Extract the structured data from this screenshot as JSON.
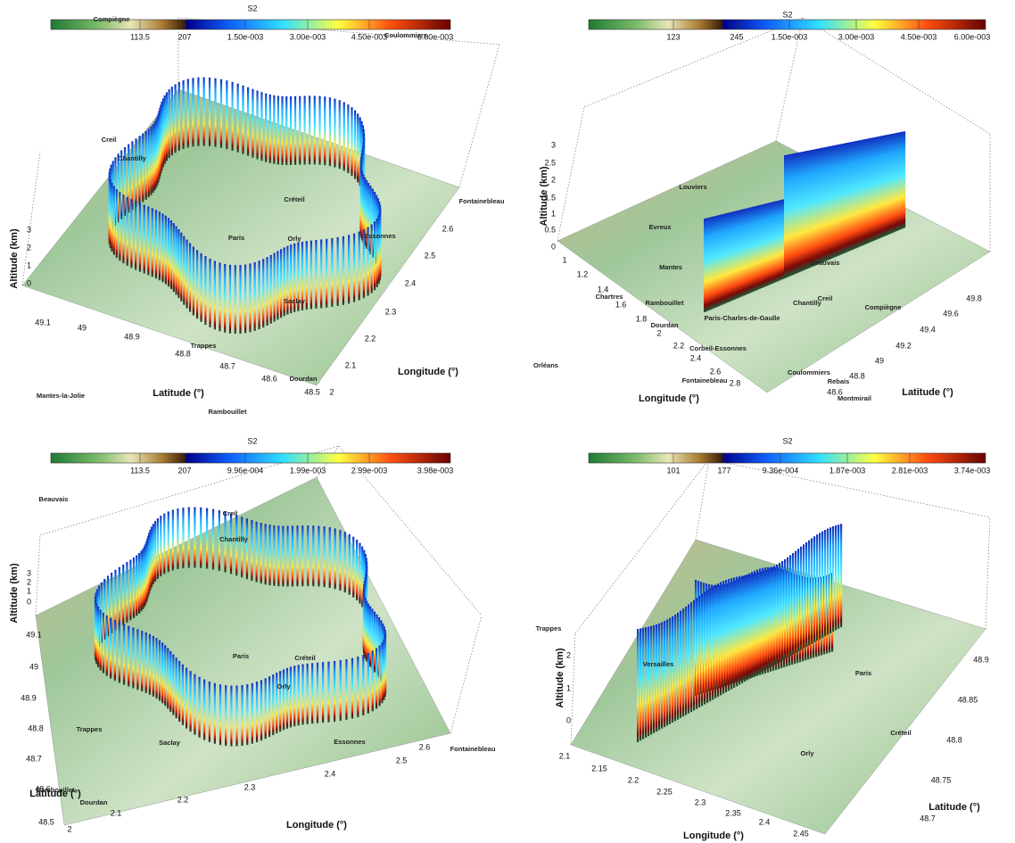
{
  "panels": [
    {
      "colorbar": {
        "title": "S2",
        "ticks": [
          "113.5",
          "207",
          "1.50e-003",
          "3.00e-003",
          "4.50e-003",
          "6.00e-003"
        ]
      },
      "axes": {
        "z_label": "Altitude (km)",
        "z_ticks": [
          0,
          1,
          2,
          3
        ],
        "lat_label": "Latitude (°)",
        "lat_ticks": [
          49.1,
          49,
          48.9,
          48.8,
          48.7,
          48.6,
          48.5
        ],
        "lon_label": "Longitude (°)",
        "lon_ticks": [
          2.6,
          2.5,
          2.4,
          2.3,
          2.2,
          2.1,
          2
        ]
      },
      "places": [
        "Compiègne",
        "Coulommiers",
        "Creil",
        "Chantilly",
        "Fontainebleau",
        "Créteil",
        "Paris",
        "Orly",
        "Essonnes",
        "Saclay",
        "Trappes",
        "Dourdan",
        "Mantes-la-Jolie",
        "Rambouillet"
      ]
    },
    {
      "colorbar": {
        "title": "S2",
        "ticks": [
          "123",
          "245",
          "1.50e-003",
          "3.00e-003",
          "4.50e-003",
          "6.00e-003"
        ]
      },
      "axes": {
        "z_label": "Altitude (km)",
        "z_ticks": [
          3,
          2.5,
          2,
          1.5,
          1,
          0.5,
          0
        ],
        "lat_label": "Latitude (°)",
        "lat_ticks": [
          49.8,
          49.6,
          49.4,
          49.2,
          49,
          48.8,
          48.6
        ],
        "lon_label": "Longitude (°)",
        "lon_ticks": [
          1,
          1.2,
          1.4,
          1.6,
          1.8,
          2,
          2.2,
          2.4,
          2.6,
          2.8
        ]
      },
      "places": [
        "Louviers",
        "Evreux",
        "Mantes",
        "Beauvais",
        "Chartres",
        "Rambouillet",
        "Dourdan",
        "Paris-Charles-de-Gaulle",
        "Creil",
        "Chantilly",
        "Compiègne",
        "Corbeil-Essonnes",
        "Orléans",
        "Fontainebleau",
        "Coulommiers",
        "Rebais",
        "Montmirail"
      ]
    },
    {
      "colorbar": {
        "title": "S2",
        "ticks": [
          "113.5",
          "207",
          "9.96e-004",
          "1.99e-003",
          "2.99e-003",
          "3.98e-003"
        ]
      },
      "axes": {
        "z_label": "Altitude (km)",
        "z_ticks": [
          3,
          2,
          1,
          0
        ],
        "lat_label": "Latitude (°)",
        "lat_ticks": [
          49.1,
          49,
          48.9,
          48.8,
          48.7,
          48.6,
          48.5
        ],
        "lon_label": "Longitude (°)",
        "lon_ticks": [
          2,
          2.1,
          2.2,
          2.3,
          2.4,
          2.5,
          2.6
        ]
      },
      "places": [
        "Beauvais",
        "Creil",
        "Chantilly",
        "Paris",
        "Créteil",
        "Orly",
        "Saclay",
        "Trappes",
        "Essonnes",
        "Fontainebleau",
        "Rambouillet",
        "Dourdan"
      ]
    },
    {
      "colorbar": {
        "title": "S2",
        "ticks": [
          "101",
          "177",
          "9.36e-004",
          "1.87e-003",
          "2.81e-003",
          "3.74e-003"
        ]
      },
      "axes": {
        "z_label": "Altitude (km)",
        "z_ticks": [
          2,
          1,
          0
        ],
        "lat_label": "Latitude (°)",
        "lat_ticks": [
          48.9,
          48.85,
          48.8,
          48.75,
          48.7
        ],
        "lon_label": "Longitude (°)",
        "lon_ticks": [
          2.1,
          2.15,
          2.2,
          2.25,
          2.3,
          2.35,
          2.4,
          2.45
        ]
      },
      "places": [
        "Trappes",
        "Versailles",
        "Paris",
        "Créteil",
        "Orly"
      ]
    }
  ]
}
